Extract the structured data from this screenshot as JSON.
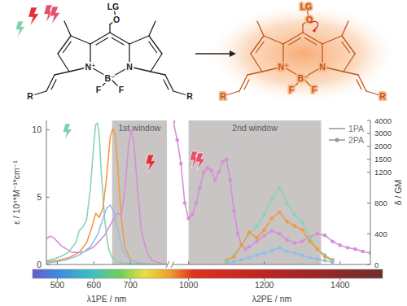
{
  "scheme": {
    "molecules": [
      {
        "labels": [
          "LG",
          "O",
          "N⁺",
          "N",
          "B⁻",
          "F",
          "F",
          "R",
          "R"
        ]
      },
      {
        "labels": [
          "LG",
          "O",
          "N⁺",
          "N",
          "B⁻",
          "F",
          "F",
          "R",
          "R"
        ]
      }
    ]
  },
  "chart_data": [
    {
      "type": "line",
      "xlabel": "λ1PE / nm",
      "ylabel": "ε / 10⁴*M⁻¹*cm⁻¹",
      "xlim": [
        470,
        800
      ],
      "xticks": [
        500,
        600,
        700
      ],
      "ylim": [
        0,
        10.7
      ],
      "yticks": [
        0,
        5,
        10
      ],
      "annotations": [
        {
          "text": "1st window",
          "x_range": [
            650,
            950
          ]
        }
      ],
      "series": [
        {
          "color": "#8ad3b5",
          "line_style": "solid",
          "x": [
            470,
            490,
            510,
            530,
            550,
            560,
            570,
            580,
            590,
            600,
            605,
            610,
            615,
            620,
            630,
            640,
            650,
            665,
            680,
            700,
            740,
            800
          ],
          "values": [
            0.3,
            0.4,
            0.6,
            0.9,
            1.6,
            2.5,
            2.8,
            3.3,
            5.5,
            9.0,
            10.4,
            10.5,
            9.5,
            7.0,
            3.2,
            1.2,
            0.5,
            0.2,
            0.1,
            0.05,
            0,
            0
          ]
        },
        {
          "color": "#f29b45",
          "line_style": "solid",
          "x": [
            470,
            500,
            530,
            560,
            580,
            595,
            605,
            615,
            625,
            635,
            645,
            652,
            658,
            665,
            675,
            685,
            700,
            720,
            760,
            800
          ],
          "values": [
            0.2,
            0.3,
            0.5,
            0.9,
            1.6,
            2.8,
            3.8,
            3.5,
            4.2,
            6.5,
            9.5,
            10.1,
            9.6,
            7.5,
            3.5,
            1.3,
            0.4,
            0.1,
            0,
            0
          ]
        },
        {
          "color": "#d690d6",
          "line_style": "solid",
          "x": [
            470,
            480,
            490,
            510,
            540,
            570,
            600,
            630,
            650,
            665,
            675,
            685,
            695,
            702,
            710,
            720,
            730,
            745,
            760,
            780,
            800
          ],
          "values": [
            1.9,
            2.1,
            2.0,
            1.4,
            0.9,
            0.9,
            1.3,
            2.2,
            3.2,
            3.8,
            3.6,
            5.5,
            8.8,
            10.0,
            9.0,
            5.5,
            2.5,
            0.9,
            0.3,
            0.1,
            0
          ]
        },
        {
          "color": "#8fc0e8",
          "line_style": "solid",
          "x": [
            470,
            520,
            560,
            590,
            610,
            625,
            635,
            645,
            655,
            665,
            680,
            700,
            740,
            800
          ],
          "values": [
            0.1,
            0.3,
            0.7,
            1.3,
            2.2,
            3.4,
            4.2,
            4.4,
            3.9,
            2.6,
            1.0,
            0.3,
            0.05,
            0
          ]
        }
      ]
    },
    {
      "type": "line",
      "xlabel": "λ2PE / nm",
      "y2label": "δ / GM",
      "xlim": [
        960,
        1480
      ],
      "xticks": [
        1000,
        1200,
        1400
      ],
      "y2lim": [
        0,
        4000
      ],
      "y2ticks": [
        0,
        400,
        800,
        1200,
        1500,
        2000,
        3000,
        4000
      ],
      "annotations": [
        {
          "text": "2nd window",
          "x_range": [
            1000,
            1350
          ]
        }
      ],
      "legend": "upper right",
      "legend_items": [
        {
          "name": "1PA",
          "color": "#9a9a9a",
          "line_style": "solid"
        },
        {
          "name": "2PA",
          "color": "#9a9a9a",
          "line_style": "solid",
          "marker": "circle"
        }
      ],
      "series": [
        {
          "color": "#d690d6",
          "axis": "y2",
          "line_style": "solid",
          "marker": "circle",
          "x": [
            960,
            970,
            980,
            990,
            1000,
            1010,
            1020,
            1030,
            1040,
            1050,
            1060,
            1070,
            1080,
            1090,
            1100,
            1110,
            1120,
            1130,
            1140,
            1150,
            1160,
            1180,
            1200,
            1220,
            1240,
            1260,
            1280,
            1300,
            1320,
            1340,
            1360,
            1380,
            1400,
            1420,
            1440,
            1460,
            1480
          ],
          "values": [
            3900,
            2500,
            1400,
            800,
            600,
            650,
            800,
            1000,
            1200,
            1300,
            1250,
            1100,
            1200,
            1450,
            1500,
            1100,
            700,
            400,
            250,
            200,
            230,
            300,
            380,
            440,
            400,
            320,
            280,
            300,
            360,
            400,
            380,
            300,
            250,
            220,
            200,
            170,
            150
          ]
        },
        {
          "color": "#8ad3b5",
          "axis": "y2",
          "line_style": "solid",
          "marker": "circle",
          "x": [
            1100,
            1120,
            1140,
            1160,
            1180,
            1200,
            1220,
            1240,
            1260,
            1280,
            1300,
            1320,
            1340,
            1360,
            1380
          ],
          "values": [
            60,
            120,
            250,
            400,
            500,
            650,
            850,
            1000,
            800,
            650,
            550,
            350,
            200,
            120,
            60
          ]
        },
        {
          "color": "#f29b45",
          "axis": "y2",
          "line_style": "solid",
          "marker": "circle",
          "x": [
            1100,
            1120,
            1140,
            1160,
            1180,
            1200,
            1220,
            1240,
            1260,
            1280,
            1300,
            1320,
            1340,
            1360,
            1380
          ],
          "values": [
            50,
            100,
            250,
            420,
            350,
            450,
            600,
            680,
            560,
            500,
            450,
            300,
            200,
            100,
            50
          ]
        },
        {
          "color": "#8fc0e8",
          "axis": "y2",
          "line_style": "solid",
          "marker": "circle",
          "x": [
            1100,
            1120,
            1140,
            1160,
            1180,
            1200,
            1220,
            1240,
            1260,
            1280,
            1300,
            1320,
            1340,
            1360,
            1380
          ],
          "values": [
            20,
            40,
            60,
            90,
            120,
            150,
            180,
            220,
            170,
            150,
            120,
            90,
            70,
            50,
            30
          ]
        }
      ]
    }
  ]
}
